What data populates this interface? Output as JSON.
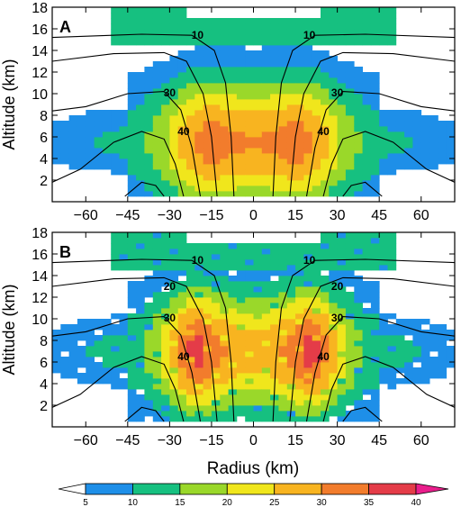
{
  "chart_data": [
    {
      "type": "heatmap",
      "panel_label": "A",
      "ylabel": "Altitude (km)",
      "xlim": [
        -72,
        72
      ],
      "ylim": [
        0,
        18
      ],
      "yticks": [
        2,
        4,
        6,
        8,
        10,
        12,
        14,
        16,
        18
      ],
      "xticks": [
        -60,
        -45,
        -30,
        -15,
        0,
        15,
        30,
        45,
        60
      ],
      "shaded_field_profile": {
        "description_radius_km": [
          0,
          7,
          15,
          22,
          30,
          38,
          45,
          58,
          72
        ],
        "peak_value_by_radius": [
          30,
          31,
          33,
          30,
          21,
          15,
          12,
          10,
          6
        ],
        "peak_altitude_km": 5.5
      },
      "contour_lines": [
        {
          "label": "10",
          "label_x": 20,
          "label_y": 15.4
        },
        {
          "label": "30",
          "label_x": 30,
          "label_y": 10.1
        },
        {
          "label": "40",
          "label_x": 25,
          "label_y": 6.5
        }
      ]
    },
    {
      "type": "heatmap",
      "panel_label": "B",
      "xlabel": "Radius (km)",
      "ylabel": "Altitude (km)",
      "xlim": [
        -72,
        72
      ],
      "ylim": [
        0,
        18
      ],
      "yticks": [
        2,
        4,
        6,
        8,
        10,
        12,
        14,
        16,
        18
      ],
      "xticks": [
        -60,
        -45,
        -30,
        -15,
        0,
        15,
        30,
        45,
        60
      ],
      "shaded_field_profile": {
        "description_radius_km": [
          0,
          7,
          15,
          20,
          25,
          32,
          40,
          55,
          72
        ],
        "peak_value_by_radius": [
          27,
          28,
          33,
          38,
          33,
          22,
          14,
          11,
          7
        ],
        "peak_altitude_km": 7
      },
      "contour_lines": [
        {
          "label": "10",
          "label_x": 20,
          "label_y": 15.4
        },
        {
          "label": "20",
          "label_x": 30,
          "label_y": 13.0
        },
        {
          "label": "30",
          "label_x": 30,
          "label_y": 10.1
        },
        {
          "label": "40",
          "label_x": 25,
          "label_y": 6.5
        }
      ]
    }
  ],
  "colorbar": {
    "levels": [
      5,
      10,
      15,
      20,
      25,
      30,
      35,
      40
    ],
    "colors": [
      "#ffffff",
      "#1e8fe8",
      "#16c080",
      "#9ad82a",
      "#f0e61c",
      "#f8b420",
      "#f27c2c",
      "#e43c48",
      "#e91e8c"
    ]
  }
}
